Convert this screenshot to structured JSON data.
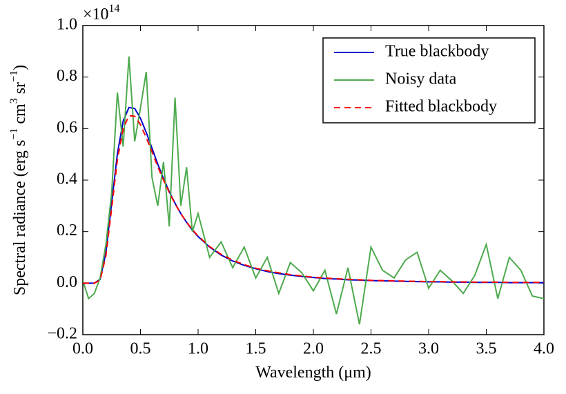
{
  "chart_data": {
    "type": "line",
    "xlabel": [
      "Wavelength (",
      "μ",
      "m)"
    ],
    "ylabel": [
      "Spectral radiance (erg s",
      "−1",
      " cm",
      "3",
      " sr",
      "−1",
      ")"
    ],
    "y_offset_text": [
      "×10",
      "14"
    ],
    "x": [
      0,
      0.05,
      0.1,
      0.15,
      0.2,
      0.25,
      0.3,
      0.35,
      0.4,
      0.45,
      0.5,
      0.55,
      0.6,
      0.65,
      0.7,
      0.75,
      0.8,
      0.85,
      0.9,
      0.95,
      1.0,
      1.1,
      1.2,
      1.3,
      1.4,
      1.5,
      1.6,
      1.7,
      1.8,
      1.9,
      2.0,
      2.1,
      2.2,
      2.3,
      2.4,
      2.5,
      2.6,
      2.7,
      2.8,
      2.9,
      3.0,
      3.1,
      3.2,
      3.3,
      3.4,
      3.5,
      3.6,
      3.7,
      3.8,
      3.9,
      4.0
    ],
    "series": [
      {
        "name": "True blackbody",
        "color": "#0000cc",
        "linestyle": "-",
        "values": [
          0,
          0,
          0,
          0.015,
          0.118,
          0.311,
          0.503,
          0.629,
          0.682,
          0.678,
          0.64,
          0.585,
          0.524,
          0.462,
          0.406,
          0.355,
          0.31,
          0.27,
          0.236,
          0.206,
          0.181,
          0.14,
          0.109,
          0.086,
          0.069,
          0.056,
          0.045,
          0.037,
          0.031,
          0.026,
          0.022,
          0.018,
          0.016,
          0.013,
          0.012,
          0.01,
          0.009,
          0.008,
          0.007,
          0.006,
          0.005,
          0.005,
          0.004,
          0.004,
          0.003,
          0.003,
          0.003,
          0.002,
          0.002,
          0.002,
          0.002
        ]
      },
      {
        "name": "Noisy data",
        "color": "#4daa4d",
        "linestyle": "-",
        "values": [
          0.01,
          -0.06,
          -0.04,
          0.02,
          0.15,
          0.35,
          0.74,
          0.53,
          0.88,
          0.55,
          0.68,
          0.82,
          0.41,
          0.3,
          0.47,
          0.22,
          0.72,
          0.3,
          0.45,
          0.2,
          0.27,
          0.1,
          0.16,
          0.06,
          0.14,
          0.02,
          0.1,
          -0.04,
          0.08,
          0.04,
          -0.03,
          0.05,
          -0.12,
          0.06,
          -0.16,
          0.14,
          0.05,
          0.02,
          0.09,
          0.12,
          -0.02,
          0.05,
          0.01,
          -0.04,
          0.03,
          0.15,
          -0.06,
          0.1,
          0.05,
          -0.05,
          -0.06
        ]
      },
      {
        "name": "Fitted blackbody",
        "color": "#ff0000",
        "linestyle": "--",
        "values": [
          0,
          0,
          0,
          0.012,
          0.105,
          0.29,
          0.48,
          0.6,
          0.65,
          0.648,
          0.615,
          0.565,
          0.51,
          0.452,
          0.4,
          0.352,
          0.308,
          0.27,
          0.237,
          0.208,
          0.183,
          0.142,
          0.112,
          0.089,
          0.072,
          0.058,
          0.048,
          0.04,
          0.033,
          0.028,
          0.023,
          0.02,
          0.017,
          0.015,
          0.013,
          0.011,
          0.01,
          0.009,
          0.008,
          0.007,
          0.006,
          0.006,
          0.005,
          0.005,
          0.004,
          0.004,
          0.004,
          0.003,
          0.003,
          0.003,
          0.003
        ]
      }
    ],
    "xlim": [
      0,
      4
    ],
    "xticks": [
      {
        "value": 0,
        "label": "0.0"
      },
      0.5,
      {
        "value": 1,
        "label": "1.0"
      },
      1.5,
      {
        "value": 2,
        "label": "2.0"
      },
      2.5,
      {
        "value": 3,
        "label": "3.0"
      },
      3.5,
      {
        "value": 4,
        "label": "4.0"
      }
    ],
    "ylim": [
      -0.2,
      1.0
    ],
    "yticks": [
      {
        "value": -0.2,
        "label": "−0.2"
      },
      {
        "value": 0,
        "label": "0.0"
      },
      0.2,
      0.4,
      0.6,
      0.8,
      {
        "value": 1,
        "label": "1.0"
      }
    ],
    "grid": false,
    "legend": "upper right"
  }
}
